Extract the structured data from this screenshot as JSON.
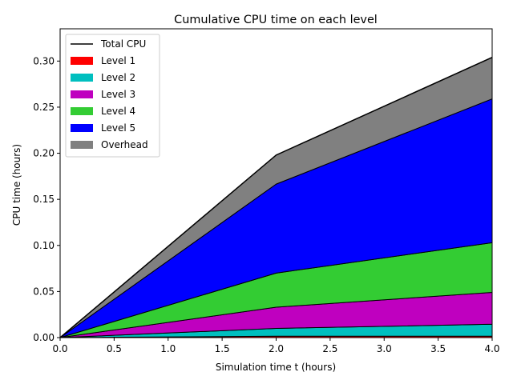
{
  "chart_data": {
    "type": "area",
    "title": "Cumulative CPU time on each level",
    "xlabel": "Simulation time t (hours)",
    "ylabel": "CPU time (hours)",
    "xlim": [
      0,
      4
    ],
    "ylim": [
      0,
      0.335
    ],
    "x_ticks": [
      "0.0",
      "0.5",
      "1.0",
      "1.5",
      "2.0",
      "2.5",
      "3.0",
      "3.5",
      "4.0"
    ],
    "y_ticks": [
      "0.00",
      "0.05",
      "0.10",
      "0.15",
      "0.20",
      "0.25",
      "0.30"
    ],
    "grid": false,
    "legend_position": "upper-left",
    "x": [
      0,
      2,
      4
    ],
    "total_cpu": {
      "name": "Total CPU",
      "color": "#000000",
      "values": [
        0,
        0.198,
        0.304
      ]
    },
    "series": [
      {
        "name": "Level 1",
        "color": "#ff0000",
        "values": [
          0,
          0.0015,
          0.0015
        ]
      },
      {
        "name": "Level 2",
        "color": "#00bfbf",
        "values": [
          0,
          0.0085,
          0.013
        ]
      },
      {
        "name": "Level 3",
        "color": "#bf00bf",
        "values": [
          0,
          0.023,
          0.0345
        ]
      },
      {
        "name": "Level 4",
        "color": "#33cc33",
        "values": [
          0,
          0.037,
          0.054
        ]
      },
      {
        "name": "Level 5",
        "color": "#0000ff",
        "values": [
          0,
          0.0965,
          0.156
        ]
      },
      {
        "name": "Overhead",
        "color": "#808080",
        "values": [
          0,
          0.0315,
          0.045
        ]
      }
    ]
  }
}
